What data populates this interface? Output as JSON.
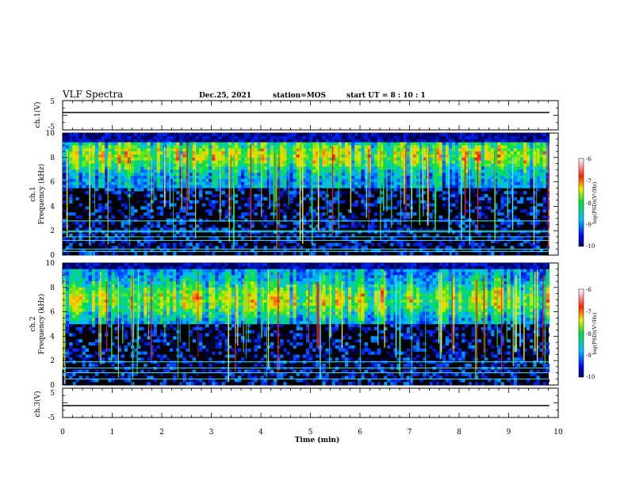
{
  "header": {
    "title": "VLF Spectra",
    "date": "Dec.25, 2021",
    "station": "station=MOS",
    "start_ut": "start  UT =   8  : 10 : 1"
  },
  "chart_data": [
    {
      "type": "line",
      "panel": "ch1-waveform",
      "ylabel": "ch.1(V)",
      "ylim": [
        -5,
        5
      ],
      "yticks": [
        "5",
        "-5"
      ],
      "series": [
        {
          "x": [
            0,
            9.82
          ],
          "y": [
            0,
            0
          ]
        }
      ]
    },
    {
      "type": "heatmap",
      "panel": "ch1-spectrogram",
      "ylabel": "ch.1\nFrequency (kHz)",
      "ylim": [
        0,
        10
      ],
      "yticks": [
        "0",
        "2",
        "4",
        "6",
        "8",
        "10"
      ],
      "colorbar": {
        "label": "log(PSD)(V²/Hz)",
        "range": [
          -10,
          -6
        ],
        "ticks": [
          "-6",
          "-7",
          "-8",
          "-9",
          "-10"
        ]
      },
      "dominant_band_khz": [
        5.5,
        9.3
      ],
      "peak_band_khz": [
        7.5,
        8.8
      ],
      "narrowband_lines_khz": [
        0.3,
        0.5,
        1.2,
        1.5,
        1.9,
        2.0,
        2.8
      ]
    },
    {
      "type": "heatmap",
      "panel": "ch2-spectrogram",
      "ylabel": "ch.2\nFrequency (kHz)",
      "ylim": [
        0,
        10
      ],
      "yticks": [
        "0",
        "2",
        "4",
        "6",
        "8",
        "10"
      ],
      "colorbar": {
        "label": "log(PSD)(V²/Hz)",
        "range": [
          -10,
          -6
        ],
        "ticks": [
          "-6",
          "-7",
          "-8",
          "-9",
          "-10"
        ]
      },
      "dominant_band_khz": [
        5.0,
        9.5
      ],
      "peak_band_khz": [
        6.2,
        7.8
      ],
      "narrowband_lines_khz": [
        0.5,
        1.0,
        1.4,
        1.9
      ]
    },
    {
      "type": "line",
      "panel": "ch3-waveform",
      "ylabel": "ch.3(V)",
      "ylim": [
        -5,
        5
      ],
      "yticks": [
        "5",
        "-5"
      ],
      "series": [
        {
          "x": [
            0,
            9.82
          ],
          "y": [
            0,
            0
          ]
        }
      ]
    }
  ],
  "x_axis": {
    "label": "Time  (min)",
    "range": [
      0,
      10
    ],
    "ticks": [
      "0",
      "1",
      "2",
      "3",
      "4",
      "5",
      "6",
      "7",
      "8",
      "9",
      "10"
    ],
    "data_end_min": 9.82
  },
  "colors": {
    "background": "#000000",
    "line": "#000000",
    "band_peak": "#e02020",
    "band_high": "#f0e020",
    "band_mid": "#20e040",
    "band_low": "#0060ff",
    "line_cyan": "#40f0ff"
  }
}
